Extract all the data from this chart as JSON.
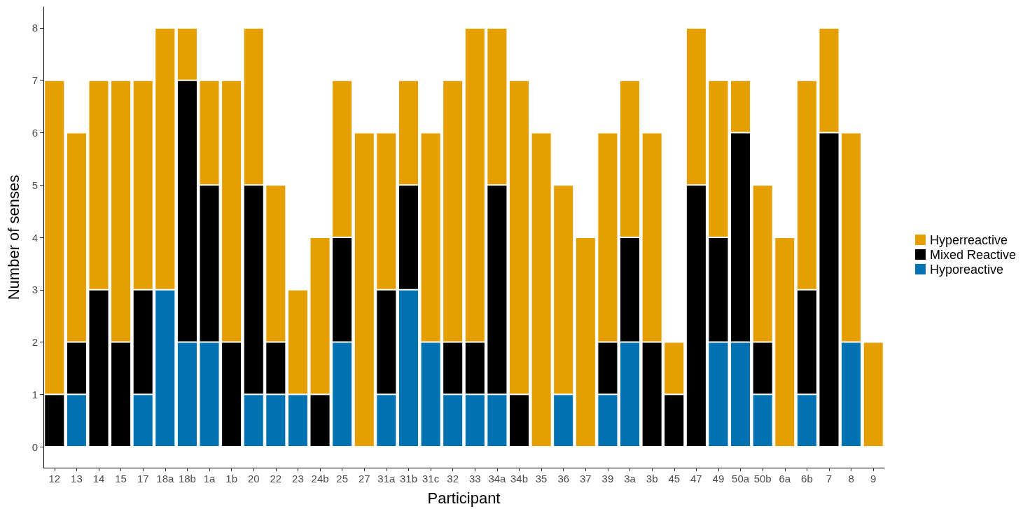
{
  "chart_data": {
    "type": "bar",
    "stacked": true,
    "xlabel": "Participant",
    "ylabel": "Number of senses",
    "categories": [
      "12",
      "13",
      "14",
      "15",
      "17",
      "18a",
      "18b",
      "1a",
      "1b",
      "20",
      "22",
      "23",
      "24b",
      "25",
      "27",
      "31a",
      "31b",
      "31c",
      "32",
      "33",
      "34a",
      "34b",
      "35",
      "36",
      "37",
      "39",
      "3a",
      "3b",
      "45",
      "47",
      "49",
      "50a",
      "50b",
      "6a",
      "6b",
      "7",
      "8",
      "9"
    ],
    "series": [
      {
        "name": "Hyporeactive",
        "color": "#0072b2",
        "values": [
          0,
          1,
          0,
          0,
          1,
          3,
          2,
          2,
          0,
          1,
          1,
          1,
          0,
          2,
          0,
          1,
          3,
          2,
          1,
          1,
          1,
          0,
          0,
          1,
          0,
          1,
          2,
          0,
          0,
          0,
          2,
          2,
          1,
          0,
          1,
          0,
          2,
          0
        ]
      },
      {
        "name": "Mixed Reactive",
        "color": "#000000",
        "values": [
          1,
          1,
          3,
          2,
          2,
          0,
          5,
          3,
          2,
          4,
          1,
          0,
          1,
          2,
          0,
          2,
          2,
          0,
          1,
          1,
          4,
          1,
          0,
          0,
          0,
          1,
          2,
          2,
          1,
          5,
          2,
          4,
          1,
          0,
          2,
          6,
          0,
          0
        ]
      },
      {
        "name": "Hyperreactive",
        "color": "#e69f00",
        "values": [
          6,
          4,
          4,
          5,
          4,
          5,
          1,
          2,
          5,
          3,
          3,
          2,
          3,
          3,
          6,
          3,
          2,
          4,
          5,
          6,
          3,
          6,
          6,
          4,
          4,
          4,
          3,
          4,
          1,
          3,
          3,
          1,
          3,
          4,
          4,
          2,
          4,
          2
        ]
      }
    ],
    "ylim": [
      -0.4,
      8.4
    ],
    "yticks": [
      0,
      1,
      2,
      3,
      4,
      5,
      6,
      7,
      8
    ],
    "grid": false,
    "legend": "right"
  }
}
